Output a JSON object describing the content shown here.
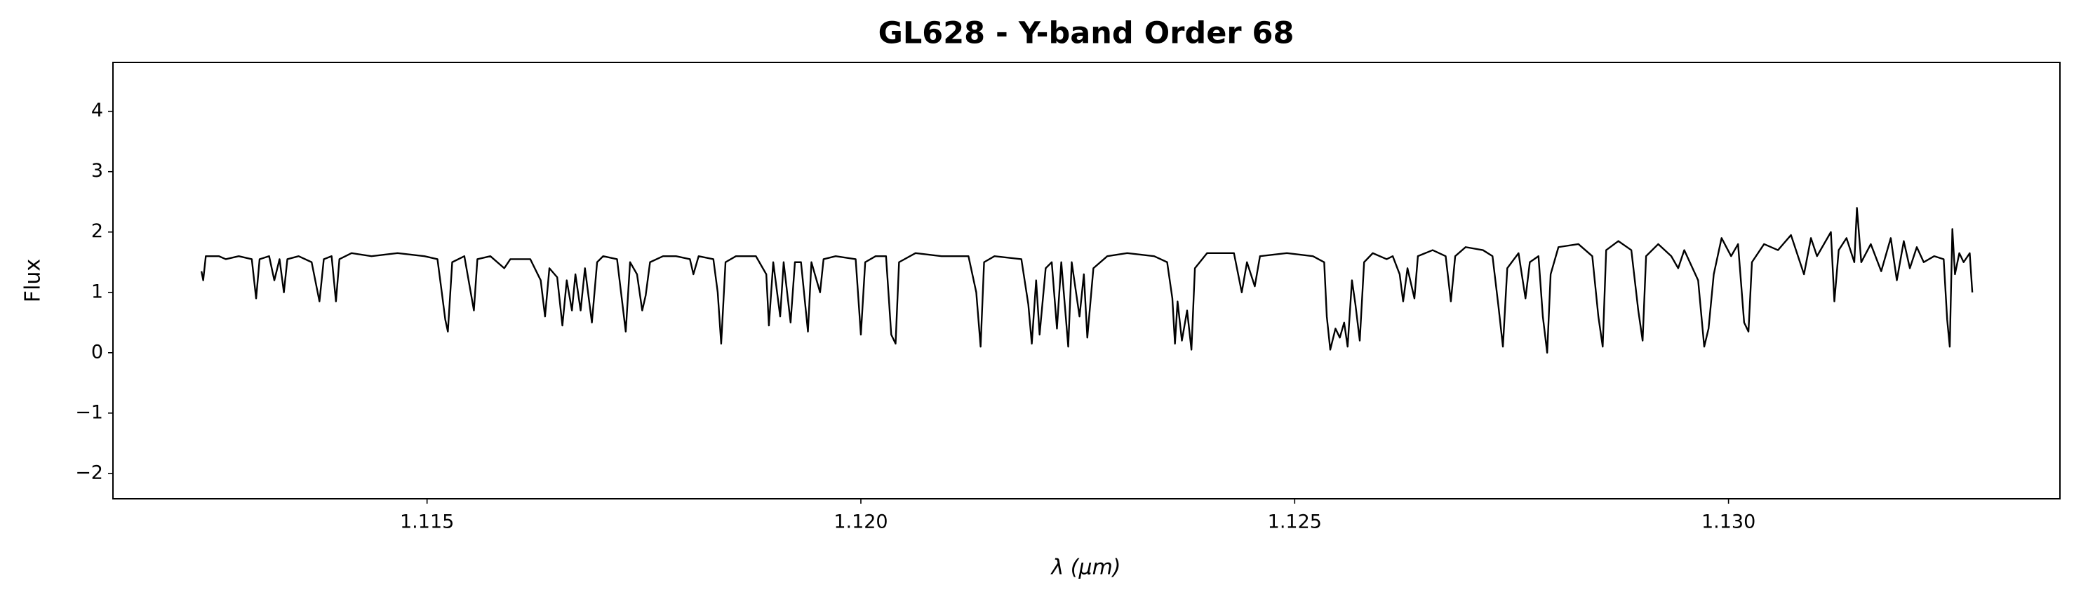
{
  "chart_data": {
    "type": "line",
    "title": "GL628 - Y-band Order 68",
    "xlabel": "λ (μm)",
    "ylabel": "Flux",
    "color": "#000000",
    "grid": false,
    "xlim": [
      1.11138,
      1.13382
    ],
    "ylim": [
      -2.42,
      4.81
    ],
    "xticks": [
      1.115,
      {
        "value": 1.12,
        "label": "1.120"
      },
      1.125,
      {
        "value": 1.13,
        "label": "1.130"
      }
    ],
    "yticks": [
      {
        "value": -2,
        "label": "−2"
      },
      {
        "value": -1,
        "label": "−1"
      },
      0,
      1,
      2,
      3,
      4
    ],
    "x": [
      1.1124,
      1.11242,
      1.11245,
      1.1126,
      1.11268,
      1.11283,
      1.11298,
      1.11303,
      1.11307,
      1.11318,
      1.11324,
      1.1133,
      1.11335,
      1.11339,
      1.11352,
      1.11367,
      1.11376,
      1.11381,
      1.1139,
      1.11395,
      1.11399,
      1.11413,
      1.11436,
      1.11466,
      1.11497,
      1.11512,
      1.11517,
      1.11521,
      1.11524,
      1.11529,
      1.11543,
      1.11554,
      1.11558,
      1.11573,
      1.11589,
      1.11596,
      1.11609,
      1.11619,
      1.11631,
      1.11636,
      1.11641,
      1.1165,
      1.11656,
      1.11661,
      1.11667,
      1.11671,
      1.11677,
      1.11682,
      1.1169,
      1.11696,
      1.11703,
      1.11719,
      1.11729,
      1.11734,
      1.11742,
      1.11748,
      1.11752,
      1.11757,
      1.11772,
      1.11787,
      1.11803,
      1.11807,
      1.11813,
      1.1183,
      1.11835,
      1.11839,
      1.11844,
      1.11856,
      1.11879,
      1.11891,
      1.11894,
      1.11899,
      1.11907,
      1.11911,
      1.11919,
      1.11924,
      1.11931,
      1.11939,
      1.11943,
      1.11953,
      1.11957,
      1.11971,
      1.11994,
      1.12,
      1.12005,
      1.12017,
      1.12029,
      1.12035,
      1.1204,
      1.12044,
      1.12063,
      1.12093,
      1.12124,
      1.12133,
      1.12138,
      1.12142,
      1.12154,
      1.12185,
      1.12193,
      1.12197,
      1.12202,
      1.12206,
      1.12213,
      1.1222,
      1.12226,
      1.12231,
      1.12239,
      1.12243,
      1.12252,
      1.12257,
      1.12261,
      1.12268,
      1.12284,
      1.12307,
      1.12338,
      1.12353,
      1.12359,
      1.12362,
      1.12365,
      1.1237,
      1.12376,
      1.12381,
      1.12385,
      1.12399,
      1.1243,
      1.12439,
      1.12445,
      1.12454,
      1.1246,
      1.12491,
      1.12521,
      1.12534,
      1.12537,
      1.12541,
      1.12547,
      1.12552,
      1.12557,
      1.12561,
      1.12566,
      1.1257,
      1.12575,
      1.1258,
      1.1259,
      1.12606,
      1.12613,
      1.12621,
      1.12625,
      1.1263,
      1.12638,
      1.12642,
      1.12659,
      1.12674,
      1.1268,
      1.12685,
      1.12697,
      1.12717,
      1.12728,
      1.12735,
      1.1274,
      1.12745,
      1.12758,
      1.12766,
      1.12771,
      1.12781,
      1.12786,
      1.12791,
      1.12795,
      1.12804,
      1.12827,
      1.12843,
      1.1285,
      1.12855,
      1.12859,
      1.12873,
      1.12888,
      1.12896,
      1.12901,
      1.12905,
      1.12919,
      1.12934,
      1.12942,
      1.12949,
      1.12965,
      1.12972,
      1.12977,
      1.12983,
      1.12992,
      1.13003,
      1.13011,
      1.13018,
      1.13023,
      1.13027,
      1.13041,
      1.13057,
      1.13072,
      1.13087,
      1.13095,
      1.13102,
      1.13118,
      1.13122,
      1.13127,
      1.13136,
      1.13145,
      1.13148,
      1.13153,
      1.13164,
      1.13176,
      1.13187,
      1.13194,
      1.13202,
      1.13209,
      1.13217,
      1.13225,
      1.13237,
      1.13248,
      1.13252,
      1.13255,
      1.13258,
      1.13261,
      1.13266,
      1.13271,
      1.13278,
      1.13281
    ],
    "values": [
      1.35,
      1.2,
      1.6,
      1.6,
      1.55,
      1.6,
      1.55,
      0.9,
      1.55,
      1.6,
      1.2,
      1.55,
      1.0,
      1.55,
      1.6,
      1.5,
      0.85,
      1.55,
      1.6,
      0.85,
      1.55,
      1.65,
      1.6,
      1.65,
      1.6,
      1.55,
      1.0,
      0.55,
      0.35,
      1.5,
      1.6,
      0.7,
      1.55,
      1.6,
      1.4,
      1.55,
      1.55,
      1.55,
      1.2,
      0.6,
      1.4,
      1.25,
      0.45,
      1.2,
      0.7,
      1.3,
      0.7,
      1.4,
      0.5,
      1.5,
      1.6,
      1.55,
      0.35,
      1.5,
      1.3,
      0.7,
      0.95,
      1.5,
      1.6,
      1.6,
      1.55,
      1.3,
      1.6,
      1.55,
      1.0,
      0.15,
      1.5,
      1.6,
      1.6,
      1.3,
      0.45,
      1.5,
      0.6,
      1.5,
      0.5,
      1.5,
      1.5,
      0.35,
      1.5,
      1.0,
      1.55,
      1.6,
      1.55,
      0.3,
      1.5,
      1.6,
      1.6,
      0.3,
      0.15,
      1.5,
      1.65,
      1.6,
      1.6,
      1.0,
      0.1,
      1.5,
      1.6,
      1.55,
      0.8,
      0.15,
      1.2,
      0.3,
      1.4,
      1.5,
      0.4,
      1.5,
      0.1,
      1.5,
      0.6,
      1.3,
      0.25,
      1.4,
      1.6,
      1.65,
      1.6,
      1.5,
      0.9,
      0.15,
      0.85,
      0.2,
      0.7,
      0.05,
      1.4,
      1.65,
      1.65,
      1.0,
      1.5,
      1.1,
      1.6,
      1.65,
      1.6,
      1.5,
      0.6,
      0.05,
      0.4,
      0.25,
      0.5,
      0.1,
      1.2,
      0.8,
      0.2,
      1.5,
      1.65,
      1.55,
      1.6,
      1.3,
      0.85,
      1.4,
      0.9,
      1.6,
      1.7,
      1.6,
      0.85,
      1.6,
      1.75,
      1.7,
      1.6,
      0.75,
      0.1,
      1.4,
      1.65,
      0.9,
      1.5,
      1.6,
      0.6,
      0.0,
      1.3,
      1.75,
      1.8,
      1.6,
      0.6,
      0.1,
      1.7,
      1.85,
      1.7,
      0.7,
      0.2,
      1.6,
      1.8,
      1.6,
      1.4,
      1.7,
      1.2,
      0.1,
      0.4,
      1.3,
      1.9,
      1.6,
      1.8,
      0.5,
      0.35,
      1.5,
      1.8,
      1.7,
      1.95,
      1.3,
      1.9,
      1.6,
      2.0,
      0.85,
      1.7,
      1.9,
      1.5,
      2.4,
      1.5,
      1.8,
      1.35,
      1.9,
      1.2,
      1.85,
      1.4,
      1.75,
      1.5,
      1.6,
      1.55,
      0.55,
      0.1,
      2.05,
      1.3,
      1.65,
      1.5,
      1.65,
      1.0
    ]
  }
}
